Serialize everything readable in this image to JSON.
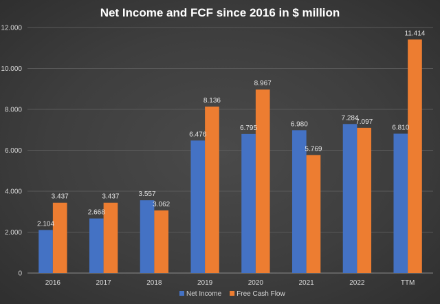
{
  "chart_data": {
    "type": "bar",
    "title": "Net Income and FCF since 2016 in $ million",
    "xlabel": "",
    "ylabel": "",
    "categories": [
      "2016",
      "2017",
      "2018",
      "2019",
      "2020",
      "2021",
      "2022",
      "TTM"
    ],
    "series": [
      {
        "name": "Net Income",
        "color": "#4472c4",
        "values": [
          2104,
          2668,
          3557,
          6476,
          6795,
          6980,
          7284,
          6810
        ],
        "labels": [
          "2.104",
          "2.668",
          "3.557",
          "6.476",
          "6.795",
          "6.980",
          "7.284",
          "6.810"
        ]
      },
      {
        "name": "Free Cash Flow",
        "color": "#ed7d31",
        "values": [
          3437,
          3437,
          3062,
          8136,
          8967,
          5769,
          7097,
          11414
        ],
        "labels": [
          "3.437",
          "3.437",
          "3.062",
          "8.136",
          "8.967",
          "5.769",
          "7.097",
          "11.414"
        ]
      }
    ],
    "ylim": [
      0,
      12000
    ],
    "y_ticks": [
      0,
      2000,
      4000,
      6000,
      8000,
      10000,
      12000
    ],
    "y_tick_labels": [
      "0",
      "2.000",
      "4.000",
      "6.000",
      "8.000",
      "10.000",
      "12.000"
    ],
    "grid": true,
    "legend_position": "bottom"
  }
}
